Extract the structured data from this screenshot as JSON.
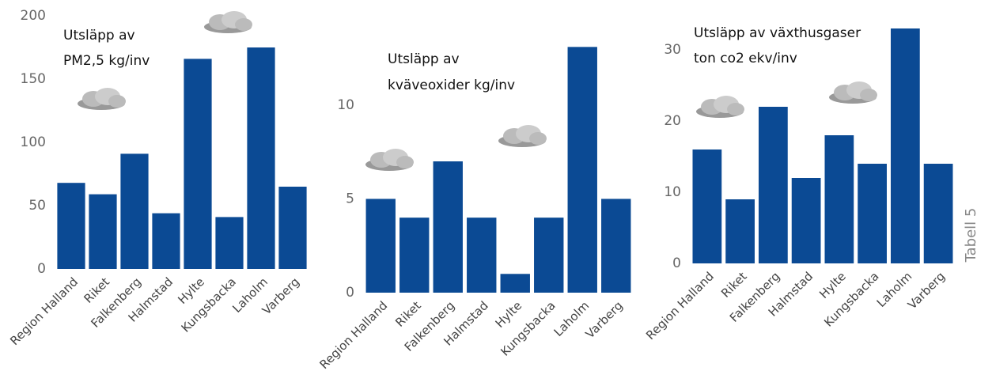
{
  "side_label": "Tabell 5",
  "chart_data": [
    {
      "type": "bar",
      "title": [
        "Utsläpp av",
        "PM2,5 kg/inv"
      ],
      "categories": [
        "Region Halland",
        "Riket",
        "Falkenberg",
        "Halmstad",
        "Hylte",
        "Kungsbacka",
        "Laholm",
        "Varberg"
      ],
      "values": [
        68,
        59,
        91,
        44,
        166,
        41,
        175,
        65
      ],
      "color": "#0b4a94",
      "ylim": [
        0,
        200
      ],
      "yticks": [
        0,
        50,
        100,
        150,
        200
      ],
      "grid": false
    },
    {
      "type": "bar",
      "title": [
        "Utsläpp av",
        "kväveoxider kg/inv"
      ],
      "categories": [
        "Region Halland",
        "Riket",
        "Falkenberg",
        "Halmstad",
        "Hylte",
        "Kungsbacka",
        "Laholm",
        "Varberg"
      ],
      "values": [
        5,
        4,
        7,
        4,
        1,
        4,
        13.1,
        5
      ],
      "color": "#0b4a94",
      "ylim": [
        0,
        14
      ],
      "yticks": [
        0,
        5,
        10
      ],
      "grid": false
    },
    {
      "type": "bar",
      "title": [
        "Utsläpp av växthusgaser",
        "ton co2 ekv/inv"
      ],
      "categories": [
        "Region Halland",
        "Riket",
        "Falkenberg",
        "Halmstad",
        "Hylte",
        "Kungsbacka",
        "Laholm",
        "Varberg"
      ],
      "values": [
        16,
        9,
        22,
        12,
        18,
        14,
        33,
        14
      ],
      "color": "#0b4a94",
      "ylim": [
        0,
        33
      ],
      "yticks": [
        0,
        10,
        20,
        30
      ],
      "grid": false
    }
  ]
}
